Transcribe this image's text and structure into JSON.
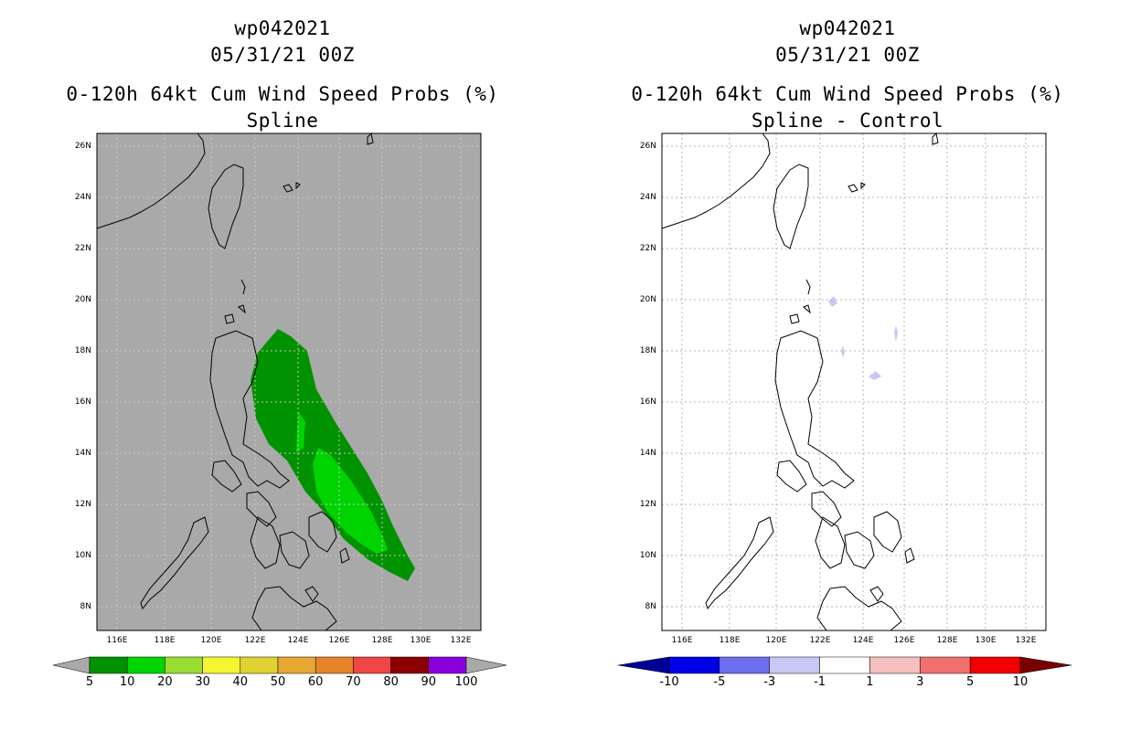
{
  "left_panel": {
    "title_lines": [
      "wp042021",
      "05/31/21 00Z",
      "0-120h 64kt Cum Wind Speed Probs (%)",
      "Spline"
    ],
    "background_color": "#a9a9a9",
    "colorbar": {
      "labels": [
        "5",
        "10",
        "20",
        "30",
        "40",
        "50",
        "60",
        "70",
        "80",
        "90",
        "100"
      ],
      "colors": [
        "#009200",
        "#00d400",
        "#99dd33",
        "#f5f532",
        "#e0d232",
        "#e6a832",
        "#e6842a",
        "#f04646",
        "#8b0000",
        "#8a00dc"
      ],
      "end_color": "#a9a9a9"
    }
  },
  "right_panel": {
    "title_lines": [
      "wp042021",
      "05/31/21 00Z",
      "0-120h 64kt Cum Wind Speed Probs (%)",
      "Spline - Control"
    ],
    "background_color": "#ffffff",
    "colorbar": {
      "labels": [
        "-10",
        "-5",
        "-3",
        "-1",
        "1",
        "3",
        "5",
        "10"
      ],
      "colors": [
        "#0000e6",
        "#6e6ef0",
        "#c8c8f5",
        "#ffffff",
        "#f5c0c0",
        "#f07070",
        "#f00000"
      ],
      "low_end_color": "#000096",
      "high_end_color": "#780000"
    }
  },
  "axes": {
    "lat_labels": [
      "26N",
      "24N",
      "22N",
      "20N",
      "18N",
      "16N",
      "14N",
      "12N",
      "10N",
      "8N"
    ],
    "lon_labels": [
      "116E",
      "118E",
      "120E",
      "122E",
      "124E",
      "126E",
      "128E",
      "130E",
      "132E"
    ],
    "lat_range": [
      7,
      26.5
    ],
    "lon_range": [
      115,
      133
    ]
  }
}
